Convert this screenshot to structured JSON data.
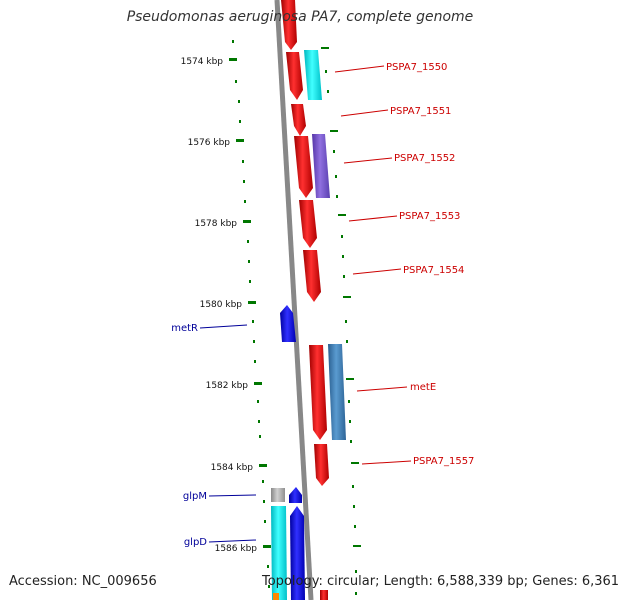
{
  "header": {
    "title": "Pseudomonas aeruginosa PA7, complete genome"
  },
  "footer": {
    "accession": "Accession: NC_009656",
    "topology": "Topology: circular; Length: 6,588,339 bp; Genes: 6,361"
  },
  "colors": {
    "backbone": "#888888",
    "forward_gene": "#ee0000",
    "reverse_gene": "#0000ee",
    "label_forward": "#cc0000",
    "label_reverse": "#000099",
    "tick": "#007700",
    "cyan": "#00e5ee",
    "violet": "#7755cc",
    "steelblue": "#3a7bb0",
    "grey": "#aaaaaa",
    "orange": "#ff8800"
  },
  "scale": {
    "unit": "kbp",
    "ticks": [
      "1574 kbp",
      "1576 kbp",
      "1578 kbp",
      "1580 kbp",
      "1582 kbp",
      "1584 kbp",
      "1586 kbp"
    ]
  },
  "genes_right": [
    {
      "name": "PSPA7_1550",
      "strand": "+"
    },
    {
      "name": "PSPA7_1551",
      "strand": "+"
    },
    {
      "name": "PSPA7_1552",
      "strand": "+"
    },
    {
      "name": "PSPA7_1553",
      "strand": "+"
    },
    {
      "name": "PSPA7_1554",
      "strand": "+"
    },
    {
      "name": "metE",
      "strand": "+"
    },
    {
      "name": "PSPA7_1557",
      "strand": "+"
    }
  ],
  "genes_left": [
    {
      "name": "metR",
      "strand": "-"
    },
    {
      "name": "glpM",
      "strand": "-"
    },
    {
      "name": "glpD",
      "strand": "-"
    }
  ]
}
